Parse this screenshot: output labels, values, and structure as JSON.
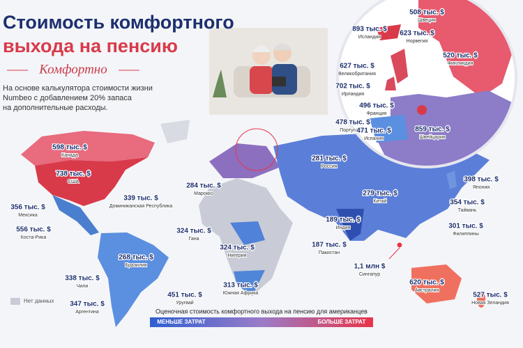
{
  "header": {
    "title_lines": [
      "Стоимость комфортного",
      "выхода на пенсию"
    ],
    "subtitle": "Комфортно",
    "description_lines": [
      "На основе калькулятора стоимости жизни",
      "Numbeo с добавлением 20% запаса",
      "на дополнительные расходы."
    ]
  },
  "map": {
    "labels": [
      {
        "name": "Канада",
        "value": "598 тыс. $"
      },
      {
        "name": "США",
        "value": "738 тыс. $"
      },
      {
        "name": "Мексика",
        "value": "356 тыс. $"
      },
      {
        "name": "Доминиканская Республика",
        "value": "339 тыс. $"
      },
      {
        "name": "Коста-Рика",
        "value": "556 тыс. $"
      },
      {
        "name": "Бразилия",
        "value": "268 тыс. $"
      },
      {
        "name": "Чили",
        "value": "338 тыс. $"
      },
      {
        "name": "Уругвай",
        "value": "451 тыс. $"
      },
      {
        "name": "Аргентина",
        "value": "347 тыс. $"
      },
      {
        "name": "Марокко",
        "value": "284 тыс. $"
      },
      {
        "name": "Гана",
        "value": "324 тыс. $"
      },
      {
        "name": "Нигерия",
        "value": "324 тыс. $"
      },
      {
        "name": "Южная Африка",
        "value": "313 тыс. $"
      },
      {
        "name": "Россия",
        "value": "281 тыс. $"
      },
      {
        "name": "Китай",
        "value": "279 тыс. $"
      },
      {
        "name": "Индия",
        "value": "189 тыс. $"
      },
      {
        "name": "Пакистан",
        "value": "187 тыс. $"
      },
      {
        "name": "Сингапур",
        "value": "1,1 млн $"
      },
      {
        "name": "Япония",
        "value": "398 тыс. $"
      },
      {
        "name": "Тайвань",
        "value": "354 тыс. $"
      },
      {
        "name": "Филиппины",
        "value": "301 тыс. $"
      },
      {
        "name": "Австралия",
        "value": "620 тыс. $"
      },
      {
        "name": "Новая Зеландия",
        "value": "527 тыс. $"
      }
    ],
    "inset_labels": [
      {
        "name": "Исландия",
        "value": "893 тыс. $"
      },
      {
        "name": "Швеция",
        "value": "508 тыс. $"
      },
      {
        "name": "Норвегия",
        "value": "623 тыс. $"
      },
      {
        "name": "Финляндия",
        "value": "520 тыс. $"
      },
      {
        "name": "Великобритания",
        "value": "627 тыс. $"
      },
      {
        "name": "Ирландия",
        "value": "702 тыс. $"
      },
      {
        "name": "Франция",
        "value": "496 тыс. $"
      },
      {
        "name": "Португалия",
        "value": "478 тыс. $"
      },
      {
        "name": "Испания",
        "value": "471 тыс. $"
      },
      {
        "name": "Швейцария",
        "value": "859 тыс. $"
      }
    ]
  },
  "legend": {
    "title": "Оценочная стоимость комфортного выхода на пенсию для американцев",
    "low": "МЕНЬШЕ ЗАТРАТ",
    "high": "БОЛЬШЕ ЗАТРАТ",
    "no_data": "Нет данных"
  }
}
